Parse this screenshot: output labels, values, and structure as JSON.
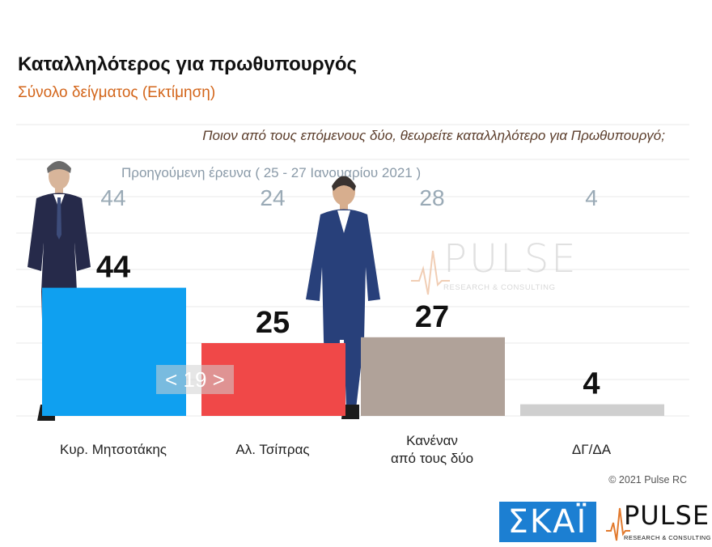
{
  "header": {
    "title": "Καταλληλότερος για πρωθυπουργός",
    "subtitle": "Σύνολο δείγματος   (Εκτίμηση)",
    "question": "Ποιον από τους επόμενους δύο, θεωρείτε καταλληλότερο για Πρωθυπουργό;",
    "previous_survey_label": "Προηγούμενη έρευνα  ( 25 - 27 Ιανουαρίου  2021 )"
  },
  "chart_data": {
    "type": "bar",
    "categories": [
      "Κυρ. Μητσοτάκης",
      "Αλ. Τσίπρας",
      "Κανέναν από τους δύο",
      "ΔΓ/ΔΑ"
    ],
    "category_lines": [
      [
        "Κυρ. Μητσοτάκης"
      ],
      [
        "Αλ. Τσίπρας"
      ],
      [
        "Κανέναν",
        "από τους δύο"
      ],
      [
        "ΔΓ/ΔΑ"
      ]
    ],
    "series": [
      {
        "name": "current",
        "values": [
          44,
          25,
          27,
          4
        ]
      },
      {
        "name": "previous",
        "values": [
          44,
          24,
          28,
          4
        ]
      }
    ],
    "colors": [
      "#0fa0f0",
      "#f04848",
      "#b0a299",
      "#cfcfcf"
    ],
    "ylim": [
      0,
      100
    ],
    "grid": true
  },
  "nav": {
    "label": "< 19 >"
  },
  "watermark": {
    "text": "PULSE",
    "sub": "RESEARCH & CONSULTING"
  },
  "footer": {
    "copyright": "© 2021 Pulse RC",
    "skai_logo": "ΣΚΑΪ",
    "pulse_logo": "PULSE",
    "pulse_logo_sub": "RESEARCH & CONSULTING"
  }
}
